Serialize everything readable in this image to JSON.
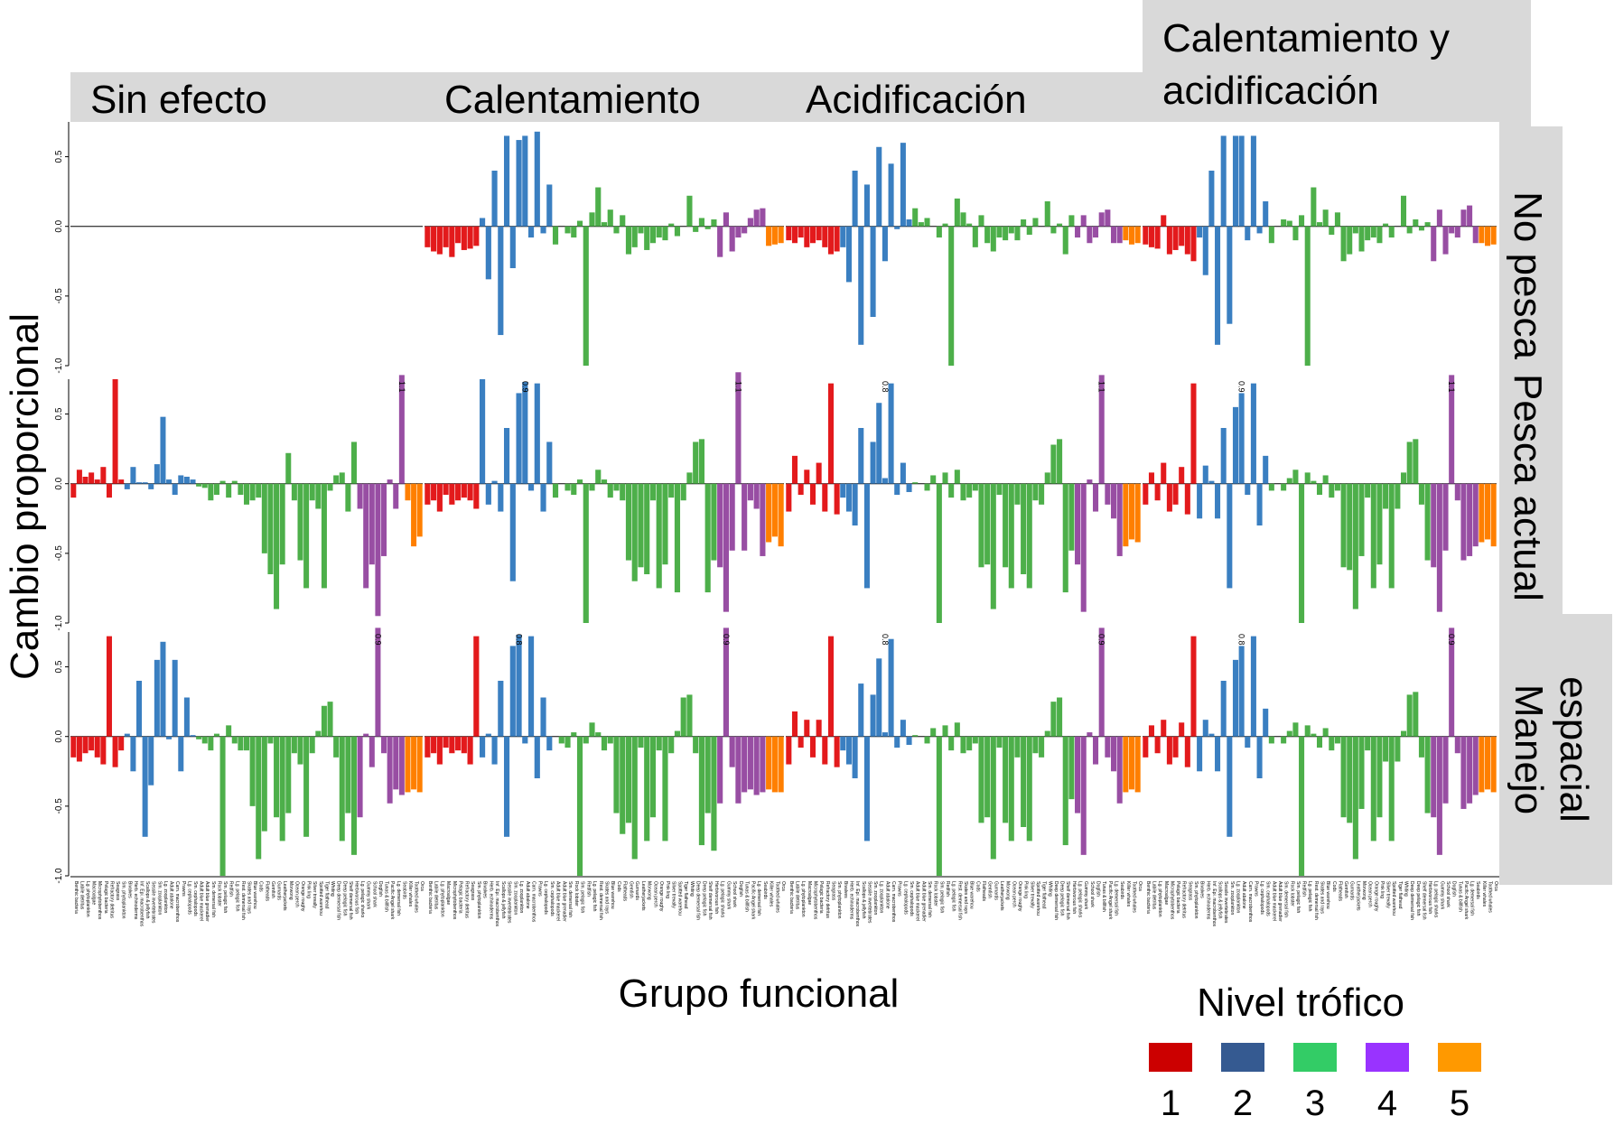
{
  "chart_data": {
    "type": "bar",
    "ylabel": "Cambio proporcional",
    "xlabel": "Grupo funcional",
    "ylim": [
      -1.0,
      0.75
    ],
    "yticks": [
      "0.5",
      "0.0",
      "-0.5",
      "-1.0"
    ],
    "columns": [
      "Sin efecto",
      "Calentamiento",
      "Acidificación",
      "Calentamiento y acidificación"
    ],
    "rows": [
      "No pesca",
      "Pesca actual",
      "Manejo espacial"
    ],
    "legend": {
      "title": "Nivel trófico",
      "items": [
        {
          "label": "1",
          "color": "#cc0000"
        },
        {
          "label": "2",
          "color": "#355a91"
        },
        {
          "label": "3",
          "color": "#33cc66"
        },
        {
          "label": "4",
          "color": "#9933ff"
        },
        {
          "label": "5",
          "color": "#ff9900"
        }
      ]
    },
    "bar_colors": {
      "1": "#e31a1c",
      "2": "#3a7fc1",
      "3": "#4daf4a",
      "4": "#984ea3",
      "5": "#ff7f00"
    },
    "categories": [
      "Benthic bacteria",
      "Labile detritus",
      "Lg. phytoplankton",
      "Macroalgae",
      "Microphytobenthos",
      "Pelagic bacteria",
      "Refractory detritus",
      "Seagrass",
      "Sm. phytoplankton",
      "Bivalves",
      "Herb. echinoderms",
      "Inf. Epi. macrobenthos",
      "Scallops & jellyfish",
      "Sessile invertebrates",
      "Sm. zooplankton",
      "Lg. zooplankton",
      "Adult abalone",
      "Carn. macrobenthos",
      "Prawns",
      "Lg. cephalopods",
      "Sm. cephalopods",
      "Adult blue mackerel",
      "Adult blue grenadier",
      "Sm. demersal fish",
      "Rock lobster",
      "Sm. pelagic fish",
      "Redfish",
      "Lg. pelagic fish",
      "Rest. demersal fish",
      "Skates and rays",
      "Blue warehou",
      "Cods",
      "Flatheads",
      "Gemfish",
      "Gurnards",
      "Leatherjackets",
      "Morwong",
      "Ocean perch",
      "Orange roughy",
      "Pink ling",
      "Silver trevally",
      "Spotted warehou",
      "Tiger flathead",
      "Whiting",
      "Deep demersal fish",
      "Deep pelagic fish",
      "Shelf demersal fish",
      "Herbivorous fish",
      "Lg. pelagic sharks",
      "Gummy shark",
      "School shark",
      "Dogfish",
      "Tunas & billfish",
      "Pacific Angel shark",
      "Lg. demersal fish",
      "Seabirds",
      "Killer whales",
      "Toothed whales",
      "Orca"
    ],
    "trophic_levels": [
      1,
      1,
      1,
      1,
      1,
      1,
      1,
      1,
      1,
      2,
      2,
      2,
      2,
      2,
      2,
      2,
      2,
      2,
      2,
      2,
      2,
      3,
      3,
      3,
      3,
      3,
      3,
      3,
      3,
      3,
      3,
      3,
      3,
      3,
      3,
      3,
      3,
      3,
      3,
      3,
      3,
      3,
      3,
      3,
      3,
      3,
      3,
      3,
      4,
      4,
      4,
      4,
      4,
      4,
      4,
      4,
      5,
      5,
      5
    ],
    "panels": {
      "No pesca": {
        "Sin efecto": {
          "values": [
            0,
            0,
            0,
            0,
            0,
            0,
            0,
            0,
            0,
            0,
            0,
            0,
            0,
            0,
            0,
            0,
            0,
            0,
            0,
            0,
            0,
            0,
            0,
            0,
            0,
            0,
            0,
            0,
            0,
            0,
            0,
            0,
            0,
            0,
            0,
            0,
            0,
            0,
            0,
            0,
            0,
            0,
            0,
            0,
            0,
            0,
            0,
            0,
            0,
            0,
            0,
            0,
            0,
            0,
            0,
            0,
            0,
            0,
            0
          ],
          "labels": []
        },
        "Calentamiento": {
          "values": [
            -0.15,
            -0.18,
            -0.2,
            -0.15,
            -0.22,
            -0.12,
            -0.17,
            -0.16,
            -0.14,
            0.06,
            -0.38,
            0.4,
            -0.78,
            0.65,
            -0.3,
            0.62,
            0.65,
            -0.08,
            0.68,
            -0.05,
            0.3,
            -0.13,
            0,
            -0.05,
            -0.08,
            0.04,
            -1.0,
            0.1,
            0.28,
            0.03,
            0.12,
            -0.05,
            0.08,
            -0.2,
            -0.15,
            -0.05,
            -0.17,
            -0.12,
            -0.08,
            -0.1,
            0.02,
            -0.07,
            0,
            0.22,
            -0.04,
            0.06,
            -0.02,
            0.05,
            -0.22,
            0.1,
            -0.18,
            -0.08,
            -0.05,
            0.06,
            0.12,
            0.13,
            -0.14,
            -0.13,
            -0.12
          ],
          "labels": []
        },
        "Acidificación": {
          "values": [
            -0.1,
            -0.12,
            -0.08,
            -0.15,
            -0.12,
            -0.1,
            -0.15,
            -0.2,
            -0.18,
            -0.15,
            -0.4,
            0.4,
            -0.85,
            0.3,
            -0.65,
            0.57,
            -0.25,
            0.45,
            -0.02,
            0.6,
            0.05,
            0.13,
            0.03,
            0.06,
            0,
            -0.08,
            0.02,
            -1.0,
            0.2,
            0.1,
            0.02,
            -0.15,
            0.08,
            -0.12,
            -0.18,
            -0.08,
            -0.1,
            -0.05,
            -0.1,
            0.05,
            -0.06,
            0.06,
            0,
            0.18,
            -0.05,
            0.02,
            -0.2,
            0.08,
            -0.08,
            0.08,
            -0.12,
            -0.08,
            0.1,
            0.12,
            -0.12,
            -0.12,
            -0.1,
            -0.13,
            -0.12
          ],
          "labels": []
        },
        "Calentamiento y acidificación": {
          "values": [
            -0.13,
            -0.15,
            -0.16,
            0.08,
            -0.2,
            -0.17,
            -0.14,
            -0.2,
            -0.25,
            -0.08,
            -0.35,
            0.4,
            -0.85,
            0.65,
            -0.7,
            0.65,
            0.65,
            -0.1,
            0.65,
            -0.05,
            0.18,
            -0.12,
            0,
            0.05,
            0.04,
            -0.1,
            0.08,
            -1.0,
            0.28,
            0.03,
            0.12,
            -0.06,
            0.1,
            -0.25,
            -0.2,
            -0.05,
            -0.18,
            -0.1,
            -0.08,
            -0.12,
            0.02,
            -0.08,
            0,
            0.22,
            -0.05,
            0.05,
            -0.03,
            0.03,
            -0.25,
            0.12,
            -0.2,
            -0.05,
            -0.08,
            0.12,
            0.15,
            -0.12,
            -0.12,
            -0.14,
            -0.13
          ],
          "labels": []
        }
      },
      "Pesca actual": {
        "Sin efecto": {
          "values": [
            -0.1,
            0.1,
            0.05,
            0.08,
            0.03,
            0.12,
            -0.1,
            0.75,
            0.03,
            -0.04,
            0.12,
            0.01,
            0.01,
            -0.04,
            0.14,
            0.48,
            0.03,
            -0.08,
            0.06,
            0.05,
            0.03,
            -0.02,
            -0.03,
            -0.12,
            -0.08,
            0.02,
            -0.1,
            0.02,
            -0.08,
            -0.15,
            -0.12,
            -0.1,
            -0.5,
            -0.65,
            -0.9,
            -0.58,
            0.22,
            -0.12,
            -0.55,
            -0.75,
            -0.12,
            -0.18,
            -0.75,
            -0.05,
            0.06,
            0.08,
            -0.2,
            0.3,
            -0.18,
            -0.75,
            -0.58,
            -0.95,
            -0.52,
            0.03,
            -0.18,
            0.78,
            -0.12,
            -0.45,
            -0.38
          ],
          "labels": [
            {
              "index": 55,
              "text": "1.1"
            }
          ]
        },
        "Calentamiento": {
          "values": [
            -0.15,
            -0.12,
            -0.2,
            -0.08,
            -0.15,
            -0.12,
            -0.1,
            -0.12,
            -0.18,
            0.75,
            -0.15,
            0.02,
            -0.2,
            0.4,
            -0.7,
            0.65,
            0.73,
            -0.05,
            0.72,
            -0.2,
            0.3,
            -0.1,
            0,
            -0.05,
            -0.08,
            0.03,
            -1.0,
            -0.05,
            0.1,
            0.03,
            -0.1,
            -0.05,
            -0.12,
            -0.55,
            -0.7,
            -0.6,
            -0.65,
            -0.12,
            -0.75,
            -0.58,
            -0.1,
            -0.78,
            -0.12,
            0.08,
            0.3,
            0.32,
            -0.78,
            -0.55,
            -0.6,
            -0.92,
            -0.48,
            0.8,
            -0.48,
            -0.12,
            -0.18,
            -0.52,
            -0.42,
            -0.38,
            -0.45
          ],
          "labels": [
            {
              "index": 16,
              "text": "0.9"
            },
            {
              "index": 51,
              "text": "1.1"
            }
          ]
        },
        "Acidificación": {
          "values": [
            -0.2,
            0.2,
            -0.08,
            0.1,
            -0.15,
            0.15,
            -0.2,
            0.72,
            -0.22,
            -0.1,
            -0.2,
            -0.3,
            0.4,
            -0.75,
            0.3,
            0.58,
            0.04,
            0.72,
            -0.08,
            0.15,
            -0.06,
            0.01,
            0,
            -0.05,
            0.06,
            -1.0,
            0.08,
            -0.1,
            0.1,
            -0.12,
            -0.1,
            -0.05,
            -0.6,
            -0.58,
            -0.9,
            -0.08,
            -0.6,
            -0.75,
            -0.15,
            -0.65,
            -0.75,
            -0.12,
            -0.15,
            0.08,
            0.28,
            0.32,
            -0.78,
            -0.48,
            -0.58,
            -0.92,
            0.03,
            -0.2,
            0.78,
            -0.15,
            -0.25,
            -0.52,
            -0.45,
            -0.4,
            -0.42
          ],
          "labels": [
            {
              "index": 16,
              "text": "0.8"
            },
            {
              "index": 52,
              "text": "1.1"
            }
          ]
        },
        "Calentamiento y acidificación": {
          "values": [
            -0.15,
            0.08,
            -0.12,
            0.15,
            -0.2,
            -0.15,
            0.12,
            -0.22,
            0.72,
            -0.25,
            0.13,
            0.02,
            -0.25,
            0.4,
            -0.75,
            0.55,
            0.65,
            -0.08,
            0.72,
            -0.3,
            0.2,
            -0.05,
            0,
            -0.05,
            0.04,
            0.1,
            -1.0,
            0.08,
            0.02,
            -0.08,
            0.06,
            -0.1,
            -0.05,
            -0.6,
            -0.62,
            -0.9,
            -0.52,
            -0.1,
            -0.75,
            -0.58,
            -0.18,
            -0.75,
            -0.18,
            0.08,
            0.3,
            0.32,
            -0.15,
            -0.55,
            -0.6,
            -0.92,
            -0.48,
            0.78,
            -0.12,
            -0.55,
            -0.52,
            -0.45,
            -0.42,
            -0.4,
            -0.45
          ],
          "labels": [
            {
              "index": 16,
              "text": "0.9"
            },
            {
              "index": 51,
              "text": "1.1"
            }
          ]
        }
      },
      "Manejo espacial": {
        "Sin efecto": {
          "values": [
            -0.15,
            -0.18,
            -0.12,
            -0.1,
            -0.15,
            -0.2,
            0.72,
            -0.22,
            -0.1,
            0.02,
            -0.25,
            0.4,
            -0.72,
            -0.35,
            0.55,
            0.68,
            -0.02,
            0.55,
            -0.25,
            0.28,
            0.01,
            -0.02,
            -0.05,
            -0.1,
            0.02,
            -1.0,
            0.08,
            -0.05,
            -0.1,
            -0.1,
            -0.5,
            -0.88,
            -0.68,
            -0.05,
            -0.58,
            -0.75,
            -0.55,
            -0.12,
            -0.2,
            -0.72,
            -0.12,
            0.04,
            0.22,
            0.25,
            -0.15,
            -0.75,
            -0.55,
            -0.85,
            -0.58,
            0.02,
            -0.22,
            0.78,
            -0.12,
            -0.48,
            -0.38,
            -0.42,
            -0.4,
            -0.38,
            -0.4
          ],
          "labels": [
            {
              "index": 51,
              "text": "0.9"
            }
          ]
        },
        "Calentamiento": {
          "values": [
            -0.15,
            -0.12,
            -0.2,
            -0.08,
            -0.12,
            -0.1,
            -0.12,
            -0.2,
            0.72,
            -0.15,
            0.02,
            -0.2,
            0.4,
            -0.72,
            0.65,
            0.73,
            -0.05,
            0.72,
            -0.3,
            0.28,
            -0.1,
            0,
            -0.05,
            -0.08,
            0.03,
            -1.0,
            -0.05,
            0.1,
            0.03,
            -0.1,
            -0.05,
            -0.55,
            -0.7,
            -0.62,
            -0.88,
            -0.08,
            -0.75,
            -0.58,
            -0.1,
            -0.75,
            -0.12,
            0.04,
            0.28,
            0.3,
            -0.12,
            -0.78,
            -0.55,
            -0.82,
            -0.48,
            0.78,
            -0.22,
            -0.48,
            -0.4,
            -0.38,
            -0.42,
            -0.4,
            -0.38,
            -0.4,
            -0.4
          ],
          "labels": [
            {
              "index": 15,
              "text": "0.8"
            },
            {
              "index": 49,
              "text": "0.9"
            }
          ]
        },
        "Acidificación": {
          "values": [
            -0.2,
            0.18,
            -0.08,
            0.12,
            -0.15,
            0.12,
            -0.2,
            0.72,
            -0.22,
            -0.1,
            -0.2,
            -0.3,
            0.38,
            -0.75,
            0.3,
            0.56,
            0.03,
            0.7,
            -0.08,
            0.12,
            -0.06,
            0.01,
            0,
            -0.05,
            0.06,
            -1.0,
            0.08,
            -0.1,
            0.1,
            -0.12,
            -0.1,
            -0.05,
            -0.62,
            -0.58,
            -0.88,
            -0.08,
            -0.62,
            -0.75,
            -0.15,
            -0.65,
            -0.75,
            -0.12,
            -0.15,
            0.04,
            0.25,
            0.28,
            -0.78,
            -0.45,
            -0.55,
            -0.85,
            0.03,
            -0.2,
            0.78,
            -0.15,
            -0.25,
            -0.48,
            -0.4,
            -0.38,
            -0.4
          ],
          "labels": [
            {
              "index": 16,
              "text": "0.8"
            },
            {
              "index": 52,
              "text": "0.9"
            }
          ]
        },
        "Calentamiento y acidificación": {
          "values": [
            -0.15,
            0.08,
            -0.12,
            0.12,
            -0.2,
            -0.15,
            0.1,
            -0.22,
            0.72,
            -0.25,
            0.12,
            0.02,
            -0.25,
            0.4,
            -0.72,
            0.55,
            0.65,
            -0.08,
            0.72,
            -0.3,
            0.2,
            -0.05,
            0,
            -0.05,
            0.04,
            0.1,
            -1.0,
            0.08,
            0.02,
            -0.08,
            0.06,
            -0.1,
            -0.05,
            -0.58,
            -0.62,
            -0.88,
            -0.52,
            -0.1,
            -0.75,
            -0.58,
            -0.18,
            -0.75,
            -0.18,
            0.04,
            0.3,
            0.32,
            -0.15,
            -0.55,
            -0.58,
            -0.85,
            -0.48,
            0.78,
            -0.12,
            -0.52,
            -0.48,
            -0.42,
            -0.4,
            -0.38,
            -0.4
          ],
          "labels": [
            {
              "index": 16,
              "text": "0.8"
            },
            {
              "index": 51,
              "text": "0.9"
            }
          ]
        }
      }
    }
  }
}
